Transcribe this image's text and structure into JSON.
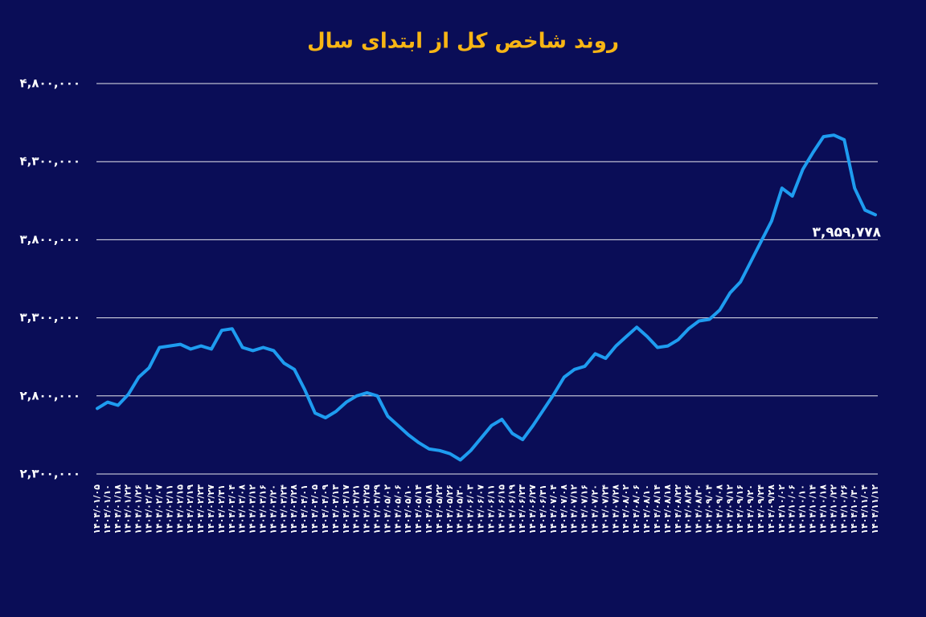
{
  "chart_data": {
    "type": "line",
    "title": "روند شاخص کل از ابتدای سال",
    "categories": [
      "۱۴۰۴/۰۱/۰۵",
      "۱۴۰۴/۰۱/۱۰",
      "۱۴۰۴/۰۱/۱۸",
      "۱۴۰۴/۰۱/۲۲",
      "۱۴۰۴/۰۱/۲۶",
      "۱۴۰۴/۰۲/۰۳",
      "۱۴۰۴/۰۲/۰۷",
      "۱۴۰۴/۰۲/۱۱",
      "۱۴۰۴/۰۲/۱۵",
      "۱۴۰۴/۰۲/۱۹",
      "۱۴۰۴/۰۲/۲۳",
      "۱۴۰۴/۰۲/۲۷",
      "۱۴۰۴/۰۲/۳۱",
      "۱۴۰۴/۰۳/۰۴",
      "۱۴۰۴/۰۳/۰۸",
      "۱۴۰۴/۰۳/۱۲",
      "۱۴۰۴/۰۳/۱۶",
      "۱۴۰۴/۰۳/۲۰",
      "۱۴۰۴/۰۳/۲۴",
      "۱۴۰۴/۰۳/۲۸",
      "۱۴۰۴/۰۴/۰۱",
      "۱۴۰۴/۰۴/۰۵",
      "۱۴۰۴/۰۴/۰۹",
      "۱۴۰۴/۰۴/۱۳",
      "۱۴۰۴/۰۴/۱۷",
      "۱۴۰۴/۰۴/۲۱",
      "۱۴۰۴/۰۴/۲۵",
      "۱۴۰۴/۰۴/۲۹",
      "۱۴۰۴/۰۵/۰۲",
      "۱۴۰۴/۰۵/۰۶",
      "۱۴۰۴/۰۵/۱۰",
      "۱۴۰۴/۰۵/۱۴",
      "۱۴۰۴/۰۵/۱۸",
      "۱۴۰۴/۰۵/۲۲",
      "۱۴۰۴/۰۵/۲۶",
      "۱۴۰۴/۰۵/۳۰",
      "۱۴۰۴/۰۶/۰۳",
      "۱۴۰۴/۰۶/۰۷",
      "۱۴۰۴/۰۶/۱۱",
      "۱۴۰۴/۰۶/۱۵",
      "۱۴۰۴/۰۶/۱۹",
      "۱۴۰۴/۰۶/۲۳",
      "۱۴۰۴/۰۶/۲۷",
      "۱۴۰۴/۰۶/۳۱",
      "۱۴۰۴/۰۷/۰۴",
      "۱۴۰۴/۰۷/۰۸",
      "۱۴۰۴/۰۷/۱۲",
      "۱۴۰۴/۰۷/۱۶",
      "۱۴۰۴/۰۷/۲۰",
      "۱۴۰۴/۰۷/۲۴",
      "۱۴۰۴/۰۷/۲۸",
      "۱۴۰۴/۰۸/۰۲",
      "۱۴۰۴/۰۸/۰۶",
      "۱۴۰۴/۰۸/۱۰",
      "۱۴۰۴/۰۸/۱۴",
      "۱۴۰۴/۰۸/۱۸",
      "۱۴۰۴/۰۸/۲۲",
      "۱۴۰۴/۰۸/۲۶",
      "۱۴۰۴/۰۸/۳۰",
      "۱۴۰۴/۰۹/۰۴",
      "۱۴۰۴/۰۹/۰۸",
      "۱۴۰۴/۰۹/۱۲",
      "۱۴۰۴/۰۹/۱۶",
      "۱۴۰۴/۰۹/۲۰",
      "۱۴۰۴/۰۹/۲۴",
      "۱۴۰۴/۰۹/۲۸",
      "۱۴۰۴/۱۰/۰۲",
      "۱۴۰۴/۱۰/۰۶",
      "۱۴۰۴/۱۰/۱۰",
      "۱۴۰۴/۱۰/۱۴",
      "۱۴۰۴/۱۰/۱۸",
      "۱۴۰۴/۱۰/۲۲",
      "۱۴۰۴/۱۰/۲۶",
      "۱۴۰۴/۱۰/۳۰",
      "۱۴۰۴/۱۱/۰۴",
      "۱۴۰۴/۱۱/۱۲"
    ],
    "values": [
      2720000,
      2760000,
      2740000,
      2810000,
      2920000,
      2980000,
      3110000,
      3120000,
      3130000,
      3100000,
      3120000,
      3100000,
      3220000,
      3230000,
      3110000,
      3090000,
      3110000,
      3090000,
      3010000,
      2970000,
      2840000,
      2690000,
      2660000,
      2700000,
      2760000,
      2800000,
      2820000,
      2800000,
      2670000,
      2610000,
      2550000,
      2500000,
      2460000,
      2450000,
      2430000,
      2390000,
      2450000,
      2530000,
      2610000,
      2650000,
      2560000,
      2520000,
      2610000,
      2710000,
      2810000,
      2920000,
      2970000,
      2990000,
      3070000,
      3040000,
      3120000,
      3180000,
      3240000,
      3180000,
      3110000,
      3120000,
      3160000,
      3230000,
      3280000,
      3290000,
      3350000,
      3460000,
      3530000,
      3660000,
      3790000,
      3920000,
      4130000,
      4080000,
      4250000,
      4360000,
      4460000,
      4470000,
      4440000,
      4130000,
      3990000,
      3959778
    ],
    "color": "#1e9cf0",
    "annotation": "۳,۹۵۹,۷۷۸",
    "ylim": [
      2300000,
      4800000
    ],
    "yticks": [
      {
        "value": 2300000,
        "label": "۲,۳۰۰,۰۰۰"
      },
      {
        "value": 2800000,
        "label": "۲,۸۰۰,۰۰۰"
      },
      {
        "value": 3300000,
        "label": "۳,۳۰۰,۰۰۰"
      },
      {
        "value": 3800000,
        "label": "۳,۸۰۰,۰۰۰"
      },
      {
        "value": 4300000,
        "label": "۴,۳۰۰,۰۰۰"
      },
      {
        "value": 4800000,
        "label": "۴,۸۰۰,۰۰۰"
      }
    ],
    "grid": true
  }
}
